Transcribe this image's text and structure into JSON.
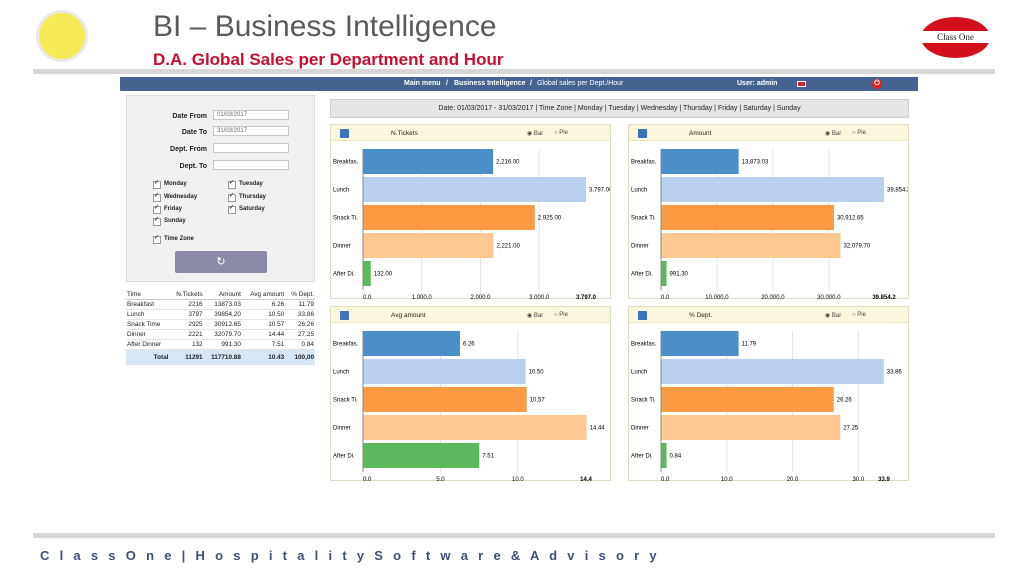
{
  "header": {
    "title": "BI – Business Intelligence",
    "subtitle": "D.A. Global Sales per Department and Hour",
    "logo_right_text": "Class One"
  },
  "footer": "C l a s s O n e | H o s p i t a l i t y S o f t w a r e & A d v i s o r y",
  "appbar": {
    "main_menu": "Main menu",
    "sep1": "/",
    "bi": "Business Intelligence",
    "sep2": "/",
    "page": "Global sales per Dept./Hour",
    "user": "User: admin"
  },
  "filters": {
    "date_from_label": "Date From",
    "date_from_value": "01/03/2017",
    "date_to_label": "Date To",
    "date_to_value": "31/03/2017",
    "dept_from_label": "Dept. From",
    "dept_to_label": "Dept. To",
    "days": [
      "Monday",
      "Tuesday",
      "Wednesday",
      "Thursday",
      "Friday",
      "Saturday",
      "Sunday"
    ],
    "time_zone_label": "Time Zone",
    "refresh_icon": "refresh-icon"
  },
  "summary": {
    "headers": [
      "Time",
      "N.Tickets",
      "Amount",
      "Avg amount",
      "% Dept."
    ],
    "rows": [
      [
        "Breakfast",
        "2216",
        "13873.03",
        "6.26",
        "11.79"
      ],
      [
        "Lunch",
        "3797",
        "39854.20",
        "10.50",
        "33.86"
      ],
      [
        "Snack Time",
        "2925",
        "30912.65",
        "10.57",
        "26.26"
      ],
      [
        "Dinner",
        "2221",
        "32079.70",
        "14.44",
        "27.25"
      ],
      [
        "After Dinner",
        "132",
        "991.30",
        "7.51",
        "0.84"
      ]
    ],
    "total": [
      "Total",
      "11291",
      "117710.88",
      "10.43",
      "100,00"
    ]
  },
  "datebar": "Date: 01/03/2017 - 31/03/2017 | Time Zone | Monday | Tuesday | Wednesday | Thursday | Friday | Saturday | Sunday",
  "radio": {
    "bar": "Bar",
    "pie": "Pie"
  },
  "colors": [
    "#4a8fc7",
    "#b9d1ed",
    "#fb9a42",
    "#fdc892",
    "#5cb85c"
  ],
  "chart_data": [
    {
      "type": "bar",
      "title": "N.Tickets",
      "categories": [
        "Breakfas.",
        "Lunch",
        "Snack Ti.",
        "Dinner",
        "After Di."
      ],
      "values": [
        2216,
        3797,
        2925,
        2221,
        132
      ],
      "labels": [
        "2,216.00",
        "3,797.00",
        "2,925.00",
        "2,221.00",
        "132.00"
      ],
      "xlim": [
        0,
        3797
      ],
      "ticks": [
        "0.0",
        "1,000.0",
        "2,000.0",
        "3,000.0"
      ],
      "tick_values": [
        0,
        1000,
        2000,
        3000
      ],
      "max_label": "3,797.0"
    },
    {
      "type": "bar",
      "title": "Amount",
      "categories": [
        "Breakfas.",
        "Lunch",
        "Snack Ti.",
        "Dinner",
        "After Di."
      ],
      "values": [
        13873.03,
        39854.2,
        30912.65,
        32079.7,
        991.3
      ],
      "labels": [
        "13,873.03",
        "39,854.20",
        "30,912.65",
        "32,079.70",
        "991.30"
      ],
      "xlim": [
        0,
        39854.2
      ],
      "ticks": [
        "0.0",
        "10,000.0",
        "20,000.0",
        "30,000.0"
      ],
      "tick_values": [
        0,
        10000,
        20000,
        30000
      ],
      "max_label": "39,854.2"
    },
    {
      "type": "bar",
      "title": "Avg amount",
      "categories": [
        "Breakfas.",
        "Lunch",
        "Snack Ti.",
        "Dinner",
        "After Di."
      ],
      "values": [
        6.26,
        10.5,
        10.57,
        14.44,
        7.51
      ],
      "labels": [
        "6.26",
        "10.50",
        "10.57",
        "14.44",
        "7.51"
      ],
      "xlim": [
        0,
        14.4
      ],
      "ticks": [
        "0.0",
        "5.0",
        "10.0"
      ],
      "tick_values": [
        0,
        5,
        10
      ],
      "max_label": "14.4"
    },
    {
      "type": "bar",
      "title": "% Dept.",
      "categories": [
        "Breakfas.",
        "Lunch",
        "Snack Ti.",
        "Dinner",
        "After Di."
      ],
      "values": [
        11.79,
        33.86,
        26.26,
        27.25,
        0.84
      ],
      "labels": [
        "11.79",
        "33.86",
        "26.26",
        "27.25",
        "0.84"
      ],
      "xlim": [
        0,
        33.9
      ],
      "ticks": [
        "0.0",
        "10.0",
        "20.0",
        "30.0"
      ],
      "tick_values": [
        0,
        10,
        20,
        30
      ],
      "max_label": "33.9"
    }
  ]
}
